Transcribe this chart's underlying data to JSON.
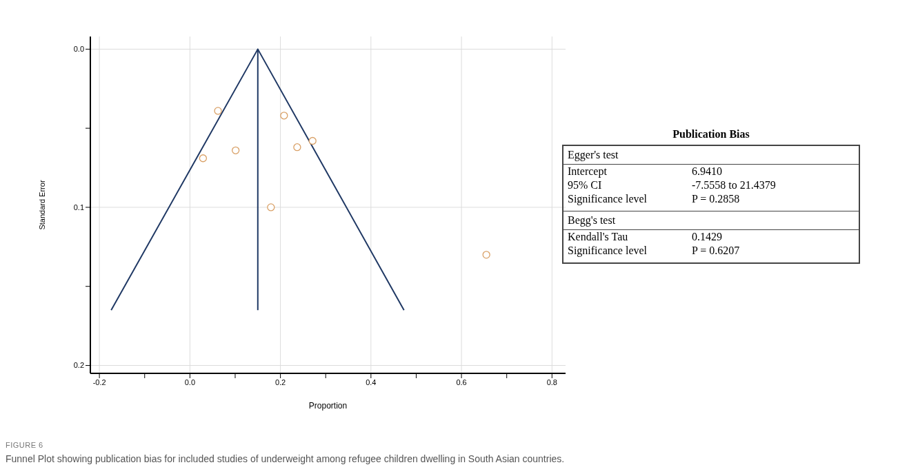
{
  "chart_data": [
    {
      "type": "scatter",
      "xlabel": "Proportion",
      "ylabel": "Standard Error",
      "xlim": [
        -0.22,
        0.83
      ],
      "ylim": [
        0.205,
        -0.008
      ],
      "xticks": [
        {
          "value": -0.2,
          "label": "-0.2"
        },
        {
          "value": -0.1,
          "label": null
        },
        {
          "value": 0,
          "label": "0.0"
        },
        {
          "value": 0.1,
          "label": null
        },
        {
          "value": 0.2,
          "label": "0.2"
        },
        {
          "value": 0.3,
          "label": null
        },
        {
          "value": 0.4,
          "label": "0.4"
        },
        {
          "value": 0.5,
          "label": null
        },
        {
          "value": 0.6,
          "label": "0.6"
        },
        {
          "value": 0.7,
          "label": null
        },
        {
          "value": 0.8,
          "label": "0.8"
        }
      ],
      "yticks": [
        {
          "value": 0,
          "label": "0.0"
        },
        {
          "value": 0.05,
          "label": null
        },
        {
          "value": 0.1,
          "label": "0.1"
        },
        {
          "value": 0.15,
          "label": null
        },
        {
          "value": 0.2,
          "label": "0.2"
        }
      ],
      "grid": true,
      "series": [
        {
          "type": "scatter",
          "marker": "circle",
          "color": "#d9a066",
          "x": [
            0.062,
            0.208,
            0.271,
            0.237,
            0.101,
            0.029,
            0.179,
            0.655
          ],
          "values": [
            0.039,
            0.042,
            0.058,
            0.062,
            0.064,
            0.069,
            0.1,
            0.13
          ]
        },
        {
          "type": "line",
          "marker": "none",
          "color": "#1f3864",
          "x": [
            -0.174,
            0.15,
            0.473
          ],
          "values": [
            0.165,
            0,
            0.165
          ]
        },
        {
          "type": "line",
          "marker": "none",
          "color": "#1f3864",
          "x": [
            0.15,
            0.15
          ],
          "values": [
            0,
            0.165
          ]
        }
      ],
      "annotations": [
        "FIGURE 6",
        "Funnel Plot showing publication bias for included studies of underweight among refugee children dwelling in South Asian countries."
      ]
    },
    {
      "type": "other",
      "title": "Publication Bias",
      "categories": [
        "Egger's test",
        "Intercept",
        "95% CI",
        "Significance level",
        "Begg's test",
        "Kendall's Tau",
        "Significance level"
      ],
      "cell_labels": [
        [
          null
        ],
        [
          "6.9410"
        ],
        [
          "-7.5558 to 21.4379"
        ],
        [
          "P = 0.2858"
        ],
        [
          null
        ],
        [
          "0.1429"
        ],
        [
          "P = 0.6207"
        ]
      ]
    }
  ]
}
